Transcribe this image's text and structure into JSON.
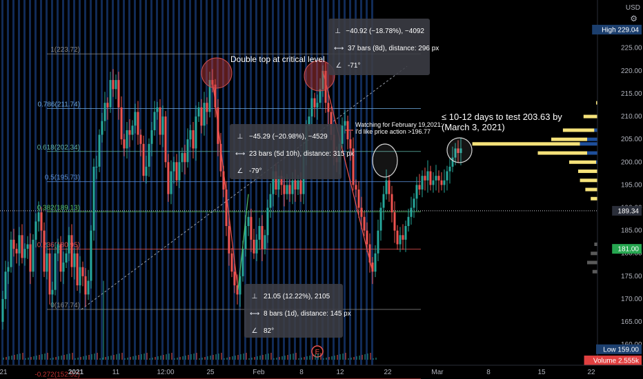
{
  "chart_data": {
    "type": "candlestick",
    "symbol_currency": "USD",
    "y_axis": {
      "ticks": [
        225,
        220,
        215,
        210,
        205,
        200,
        195,
        190,
        185,
        180,
        175,
        170,
        165,
        160
      ],
      "ylim": [
        155.5,
        231
      ],
      "scale": "linear"
    },
    "x_axis": {
      "ticks": [
        "21",
        "2021",
        "11",
        "12:00",
        "25",
        "Feb",
        "8",
        "12",
        "22",
        "Mar",
        "8",
        "15",
        "22"
      ]
    },
    "price_labels": [
      {
        "name": "High",
        "value": "229.04",
        "color": "#1c3f6e"
      },
      {
        "name": "",
        "value": "189.34",
        "color": "#2a2e39"
      },
      {
        "name": "",
        "value": "181.00",
        "color": "#26a650"
      },
      {
        "name": "Low",
        "value": "159.00",
        "color": "#1c3f6e"
      },
      {
        "name": "Volume",
        "value": "2.555k",
        "color": "#e04040"
      }
    ],
    "fib_levels": [
      {
        "label": "1(223.72)",
        "value": 223.72,
        "color": "#888888"
      },
      {
        "label": "0.786(211.74)",
        "value": 211.74,
        "color": "#6fa8dc"
      },
      {
        "label": "0.618(202.34)",
        "value": 202.34,
        "color": "#5fb3a8"
      },
      {
        "label": "0.5(195.73)",
        "value": 195.73,
        "color": "#5b8fd6"
      },
      {
        "label": "0.382(189.13)",
        "value": 189.13,
        "color": "#56c26b"
      },
      {
        "label": "0.236(180.95)",
        "value": 180.95,
        "color": "#e05050"
      },
      {
        "label": "0(167.74)",
        "value": 167.74,
        "color": "#888888"
      },
      {
        "label": "-0.272(152.52)",
        "value": 152.52,
        "color": "#c03030"
      }
    ],
    "close_path": [
      [
        0,
        165
      ],
      [
        4,
        170
      ],
      [
        8,
        176
      ],
      [
        12,
        177
      ],
      [
        16,
        183
      ],
      [
        20,
        181
      ],
      [
        24,
        180
      ],
      [
        28,
        184
      ],
      [
        32,
        179
      ],
      [
        36,
        181
      ],
      [
        40,
        182
      ],
      [
        44,
        176
      ],
      [
        48,
        183
      ],
      [
        52,
        187
      ],
      [
        56,
        189
      ],
      [
        60,
        185
      ],
      [
        64,
        176
      ],
      [
        68,
        180
      ],
      [
        72,
        171
      ],
      [
        76,
        172
      ],
      [
        80,
        180
      ],
      [
        84,
        182
      ],
      [
        88,
        176
      ],
      [
        92,
        178
      ],
      [
        96,
        180
      ],
      [
        100,
        184
      ],
      [
        104,
        177
      ],
      [
        108,
        180
      ],
      [
        112,
        173
      ],
      [
        116,
        177
      ],
      [
        120,
        175
      ],
      [
        124,
        171
      ],
      [
        128,
        174
      ],
      [
        132,
        185
      ],
      [
        136,
        199
      ],
      [
        140,
        199
      ],
      [
        144,
        206
      ],
      [
        148,
        209
      ],
      [
        152,
        213
      ],
      [
        156,
        212
      ],
      [
        160,
        218
      ],
      [
        164,
        216
      ],
      [
        168,
        218
      ],
      [
        172,
        212
      ],
      [
        176,
        205
      ],
      [
        180,
        203
      ],
      [
        184,
        207
      ],
      [
        188,
        206
      ],
      [
        192,
        208
      ],
      [
        196,
        211
      ],
      [
        200,
        206
      ],
      [
        204,
        204
      ],
      [
        208,
        197
      ],
      [
        212,
        199
      ],
      [
        216,
        204
      ],
      [
        220,
        207
      ],
      [
        224,
        211
      ],
      [
        228,
        212
      ],
      [
        232,
        206
      ],
      [
        236,
        210
      ],
      [
        240,
        200
      ],
      [
        244,
        193
      ],
      [
        248,
        198
      ],
      [
        252,
        200
      ],
      [
        256,
        196
      ],
      [
        260,
        200
      ],
      [
        264,
        202
      ],
      [
        268,
        200
      ],
      [
        272,
        205
      ],
      [
        276,
        207
      ],
      [
        280,
        203
      ],
      [
        284,
        210
      ],
      [
        288,
        212
      ],
      [
        292,
        208
      ],
      [
        296,
        213
      ],
      [
        300,
        211
      ],
      [
        304,
        218
      ],
      [
        308,
        217
      ],
      [
        312,
        212
      ],
      [
        316,
        204
      ],
      [
        320,
        198
      ],
      [
        324,
        194
      ],
      [
        328,
        186
      ],
      [
        332,
        180
      ],
      [
        336,
        176
      ],
      [
        340,
        173
      ],
      [
        344,
        171
      ],
      [
        348,
        175
      ],
      [
        352,
        181
      ],
      [
        356,
        186
      ],
      [
        360,
        188
      ],
      [
        364,
        183
      ],
      [
        368,
        180
      ],
      [
        372,
        183
      ],
      [
        376,
        186
      ],
      [
        380,
        181
      ],
      [
        384,
        184
      ],
      [
        388,
        190
      ],
      [
        392,
        193
      ],
      [
        396,
        198
      ],
      [
        400,
        194
      ],
      [
        404,
        197
      ],
      [
        408,
        195
      ],
      [
        412,
        193
      ],
      [
        416,
        195
      ],
      [
        420,
        193
      ],
      [
        424,
        196
      ],
      [
        428,
        194
      ],
      [
        432,
        196
      ],
      [
        436,
        193
      ],
      [
        440,
        202
      ],
      [
        444,
        208
      ],
      [
        448,
        210
      ],
      [
        452,
        214
      ],
      [
        456,
        212
      ],
      [
        460,
        213
      ],
      [
        464,
        216
      ],
      [
        468,
        220
      ],
      [
        472,
        213
      ],
      [
        476,
        211
      ],
      [
        480,
        206
      ],
      [
        484,
        201
      ],
      [
        488,
        200
      ],
      [
        492,
        204
      ],
      [
        496,
        208
      ],
      [
        500,
        209
      ],
      [
        504,
        205
      ],
      [
        508,
        203
      ],
      [
        512,
        195
      ],
      [
        516,
        194
      ],
      [
        520,
        190
      ],
      [
        524,
        188
      ],
      [
        528,
        185
      ],
      [
        532,
        182
      ],
      [
        536,
        178
      ],
      [
        540,
        176
      ],
      [
        544,
        180
      ],
      [
        548,
        185
      ],
      [
        552,
        190
      ],
      [
        556,
        193
      ],
      [
        560,
        196
      ],
      [
        564,
        193
      ],
      [
        568,
        189
      ],
      [
        572,
        185
      ],
      [
        576,
        182
      ],
      [
        580,
        184
      ],
      [
        584,
        183
      ],
      [
        588,
        186
      ],
      [
        592,
        188
      ],
      [
        596,
        190
      ],
      [
        600,
        192
      ],
      [
        604,
        195
      ],
      [
        608,
        194
      ],
      [
        612,
        197
      ],
      [
        616,
        196
      ],
      [
        620,
        198
      ],
      [
        624,
        195
      ],
      [
        628,
        196
      ],
      [
        632,
        197
      ],
      [
        636,
        196
      ],
      [
        640,
        195
      ],
      [
        644,
        196
      ],
      [
        648,
        198
      ],
      [
        652,
        199
      ],
      [
        656,
        201
      ],
      [
        660,
        203
      ],
      [
        664,
        202
      ],
      [
        668,
        203
      ]
    ],
    "volume_profile": [
      {
        "price": 222,
        "buy": 3,
        "sell": 1
      },
      {
        "price": 219,
        "buy": 5,
        "sell": 3
      },
      {
        "price": 216,
        "buy": 8,
        "sell": 4
      },
      {
        "price": 213,
        "buy": 12,
        "sell": 8
      },
      {
        "price": 210,
        "buy": 20,
        "sell": 14
      },
      {
        "price": 207,
        "buy": 35,
        "sell": 22
      },
      {
        "price": 205,
        "buy": 40,
        "sell": 30
      },
      {
        "price": 204,
        "buy": 120,
        "sell": 38
      },
      {
        "price": 202,
        "buy": 55,
        "sell": 30
      },
      {
        "price": 200,
        "buy": 30,
        "sell": 20
      },
      {
        "price": 198,
        "buy": 24,
        "sell": 16
      },
      {
        "price": 196,
        "buy": 20,
        "sell": 18
      },
      {
        "price": 194,
        "buy": 18,
        "sell": 14
      },
      {
        "price": 192,
        "buy": 14,
        "sell": 12
      },
      {
        "price": 190,
        "buy": 10,
        "sell": 6
      },
      {
        "price": 188,
        "buy": 8,
        "sell": 6
      },
      {
        "price": 186,
        "buy": 10,
        "sell": 8
      },
      {
        "price": 184,
        "buy": 6,
        "sell": 4
      },
      {
        "price": 182,
        "buy": 12,
        "sell": 10
      },
      {
        "price": 180,
        "buy": 14,
        "sell": 12
      },
      {
        "price": 178,
        "buy": 16,
        "sell": 14
      },
      {
        "price": 176,
        "buy": 14,
        "sell": 10
      },
      {
        "price": 174,
        "buy": 10,
        "sell": 8
      },
      {
        "price": 172,
        "buy": 8,
        "sell": 6
      },
      {
        "price": 170,
        "buy": 6,
        "sell": 4
      },
      {
        "price": 168,
        "buy": 5,
        "sell": 3
      },
      {
        "price": 166,
        "buy": 3,
        "sell": 2
      },
      {
        "price": 164,
        "buy": 2,
        "sell": 1
      }
    ],
    "colors": {
      "up": "#26a69a",
      "down": "#ef5350",
      "stripe": "#1f4e9e",
      "profile_buy": "#f5e27a",
      "profile_sell": "#1e4f9c"
    }
  },
  "annotations": {
    "double_top_label": "Double top at critical level",
    "watching_line1": "Watching for February 19,2021:",
    "watching_line2": "I'd like price action >196.77",
    "target_line1": "≤ 10-12 days to test 203.63 by",
    "target_line2": "(March 3, 2021)",
    "earnings_marker": "E"
  },
  "measure_boxes": [
    {
      "rows": [
        "−40.92 (−18.78%), −4092",
        "37 bars (8d), distance: 296 px",
        "-71°"
      ]
    },
    {
      "rows": [
        "−45.29 (−20.98%), −4529",
        "23 bars (5d 10h), distance: 315 px",
        "-79°"
      ]
    },
    {
      "rows": [
        "21.05 (12.22%), 2105",
        "8 bars (1d), distance: 145 px",
        "82°"
      ]
    }
  ],
  "measure_icons": [
    "⊥",
    "⟷",
    "∠"
  ]
}
